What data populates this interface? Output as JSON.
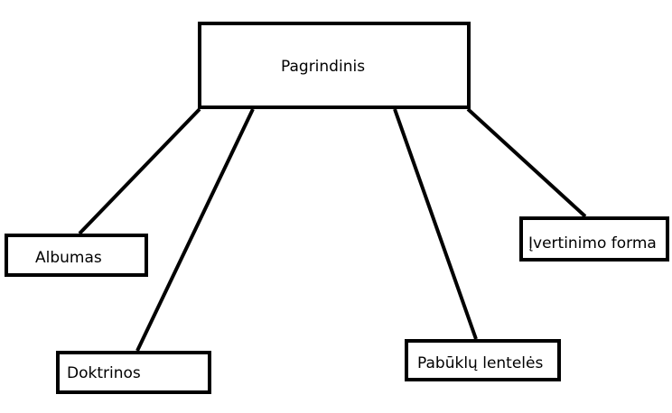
{
  "diagram": {
    "root": {
      "label": "Pagrindinis"
    },
    "children": [
      {
        "label": "Albumas"
      },
      {
        "label": "Doktrinos"
      },
      {
        "label": "Pabūklų lentelės"
      },
      {
        "label": "Įvertinimo forma"
      }
    ]
  },
  "colors": {
    "stroke": "#000000",
    "background": "#ffffff"
  }
}
